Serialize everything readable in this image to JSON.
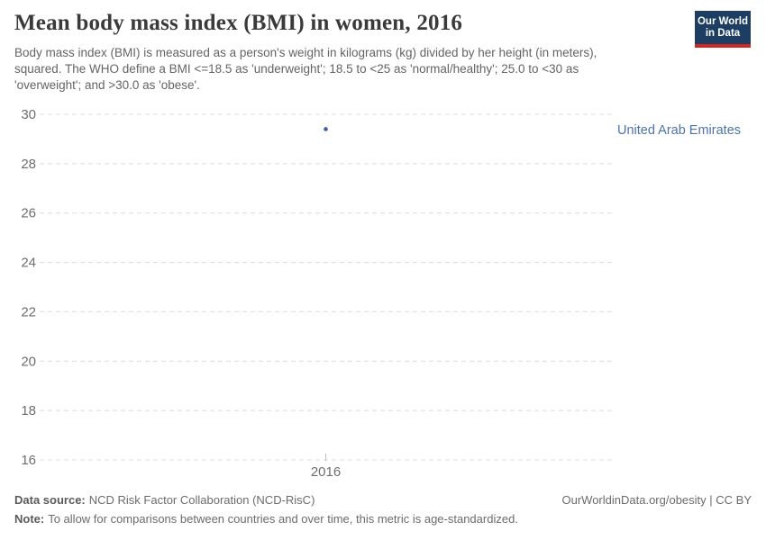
{
  "header": {
    "title": "Mean body mass index (BMI) in women, 2016",
    "subtitle_lines": [
      "Body mass index (BMI) is measured as a person's weight in kilograms (kg) divided by her height (in meters),",
      "squared. The WHO define a BMI <=18.5 as 'underweight'; 18.5 to <25 as 'normal/healthy'; 25.0 to <30 as",
      "'overweight'; and >30.0 as 'obese'."
    ],
    "logo": {
      "line1": "Our World",
      "line2": "in Data",
      "bg_color": "#1d3d63",
      "stripe_color": "#cf2721"
    }
  },
  "chart_data": {
    "type": "scatter",
    "title": "Mean body mass index (BMI) in women, 2016",
    "x": [
      2016
    ],
    "series": [
      {
        "name": "United Arab Emirates",
        "values": [
          29.4
        ],
        "color": "#3f5f9e",
        "label_color": "#4d72ad"
      }
    ],
    "ylim": [
      16,
      30
    ],
    "yticks": [
      16,
      18,
      20,
      22,
      24,
      26,
      28,
      30
    ],
    "xticks": [
      "2016"
    ],
    "xlabel": "",
    "ylabel": "",
    "grid": "horizontal-dashed",
    "gridline_color": "#dcdcdc",
    "axis_label_color": "#6e6e6e",
    "tick_mark_color": "#bcbcbc",
    "legend_position": "right-of-plot"
  },
  "footer": {
    "source_label": "Data source:",
    "source_text": "NCD Risk Factor Collaboration (NCD-RisC)",
    "right_text": "OurWorldinData.org/obesity | CC BY",
    "note_label": "Note:",
    "note_text": "To allow for comparisons between countries and over time, this metric is age-standardized."
  }
}
